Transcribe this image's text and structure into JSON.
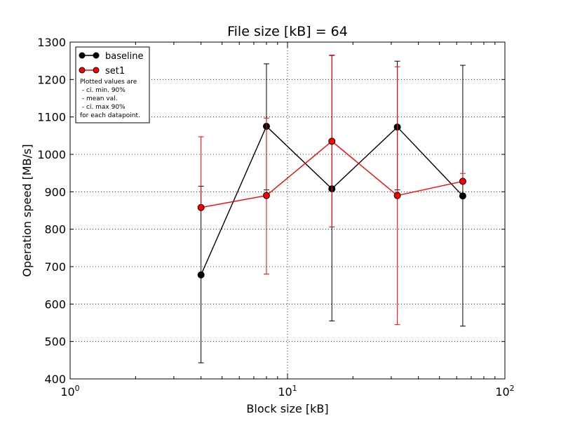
{
  "chart_data": {
    "type": "line",
    "title": "File size [kB] = 64",
    "xlabel": "Block size [kB]",
    "ylabel": "Operation speed [MB/s]",
    "x_scale": "log",
    "xlim": [
      1,
      100
    ],
    "ylim": [
      400,
      1300
    ],
    "grid": true,
    "legend_position": "top-left",
    "x_ticks": [
      {
        "value": 1,
        "base": "10",
        "exp": "0"
      },
      {
        "value": 10,
        "base": "10",
        "exp": "1"
      },
      {
        "value": 100,
        "base": "10",
        "exp": "2"
      }
    ],
    "y_ticks": [
      400,
      500,
      600,
      700,
      800,
      900,
      1000,
      1100,
      1200,
      1300
    ],
    "series": [
      {
        "name": "baseline",
        "color": "#000000",
        "x": [
          4,
          8,
          16,
          32,
          64
        ],
        "y": [
          678,
          1075,
          908,
          1073,
          889
        ],
        "ci_min": [
          443,
          905,
          555,
          905,
          541
        ],
        "ci_max": [
          915,
          1242,
          1265,
          1249,
          1238
        ]
      },
      {
        "name": "set1",
        "color": "#ff0000",
        "x": [
          4,
          8,
          16,
          32,
          64
        ],
        "y": [
          858,
          890,
          1035,
          890,
          928
        ],
        "ci_min": [
          858,
          680,
          806,
          545,
          928
        ],
        "ci_max": [
          1047,
          1097,
          1264,
          1234,
          949
        ]
      }
    ],
    "annotation": [
      "Plotted values are",
      " - ci. min. 90%",
      " - mean val.",
      " - ci. max 90%",
      "for each datapoint."
    ]
  }
}
